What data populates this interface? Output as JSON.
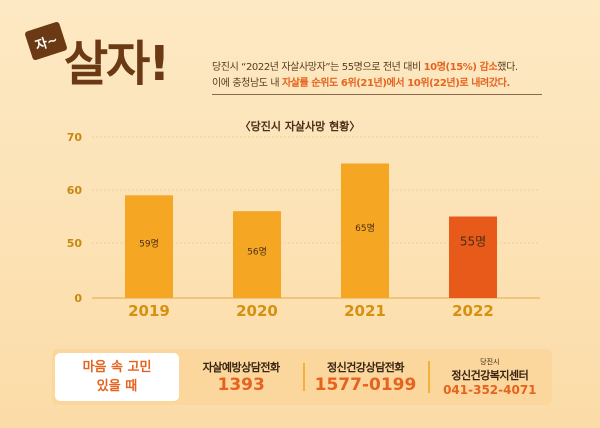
{
  "header": {
    "badge": "자~",
    "title": "살자!",
    "line1_a": "당진시 “2022년 자살사망자”는 55명으로 전년 대비 ",
    "line1_hl": "10명(15%) 감소",
    "line1_b": "했다.",
    "line2_a": "이에 충청남도 내 ",
    "line2_hl": "자살률 순위도 6위(21년)에서 10위(22년)로 내려갔다."
  },
  "chart_data": {
    "type": "bar",
    "title": "〈당진시 자살사망 현황〉",
    "categories": [
      "2019",
      "2020",
      "2021",
      "2022"
    ],
    "values": [
      59,
      56,
      65,
      55
    ],
    "data_labels": [
      "59명",
      "56명",
      "65명",
      "55명"
    ],
    "yticks": [
      "0",
      "50",
      "60",
      "70"
    ],
    "ylim": [
      40,
      70
    ],
    "axis_break": true,
    "colors": [
      "#f5a623",
      "#f5a623",
      "#f5a623",
      "#e85a1a"
    ]
  },
  "footer": {
    "left_line1": "마음 속 고민",
    "left_line2": "있을 때",
    "items": [
      {
        "label": "자살예방상담전화",
        "number": "1393"
      },
      {
        "label": "정신건강상담전화",
        "number": "1577-0199"
      },
      {
        "small": "당진시",
        "label": "정신건강복지센터",
        "number": "041-352-4071"
      }
    ]
  }
}
